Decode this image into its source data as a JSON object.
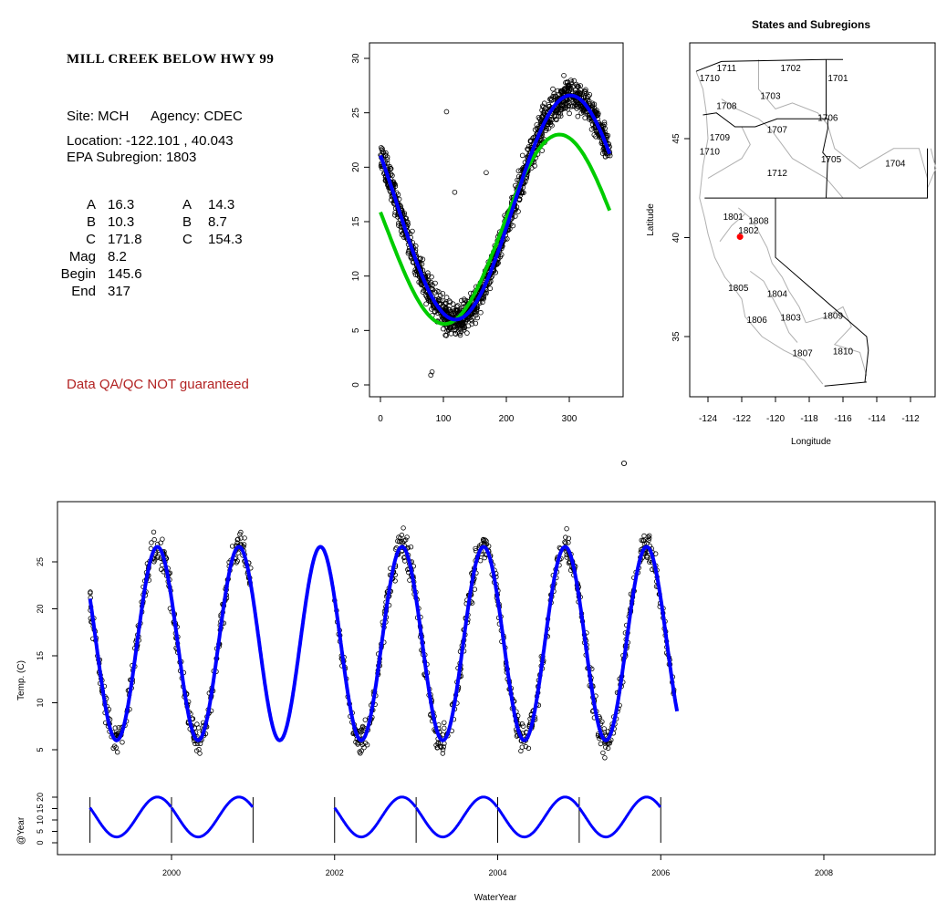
{
  "info": {
    "site_title": "MILL CREEK BELOW HWY 99",
    "site_label": "Site: MCH",
    "agency_label": "Agency: CDEC",
    "location": "Location: -122.101 , 40.043",
    "subregion": "EPA Subregion: 1803",
    "params": [
      {
        "label": "A",
        "v1": "16.3",
        "label2": "A",
        "v2": "14.3"
      },
      {
        "label": "B",
        "v1": "10.3",
        "label2": "B",
        "v2": "8.7"
      },
      {
        "label": "C",
        "v1": "171.8",
        "label2": "C",
        "v2": "154.3"
      },
      {
        "label": "Mag",
        "v1": "8.2",
        "label2": "",
        "v2": ""
      },
      {
        "label": "Begin",
        "v1": "145.6",
        "label2": "",
        "v2": ""
      },
      {
        "label": "End",
        "v1": "317",
        "label2": "",
        "v2": ""
      }
    ],
    "qa_note": "Data QA/QC NOT guaranteed"
  },
  "colors": {
    "fit_blue": "#0000ff",
    "fit_green": "#00cc00",
    "points": "#000000",
    "site_marker": "#ff0000",
    "qa_text": "#b22222"
  },
  "chart_data": [
    {
      "type": "scatter",
      "title": "",
      "xlabel": "",
      "ylabel": "",
      "xlim": [
        0,
        365
      ],
      "ylim": [
        0,
        30
      ],
      "xticks": [
        0,
        100,
        200,
        300
      ],
      "yticks": [
        0,
        5,
        10,
        15,
        20,
        25,
        30
      ],
      "series": [
        {
          "model": "harmonic fit 1",
          "A": 16.3,
          "B": 10.3,
          "C": 171.8,
          "color": "#0000ff"
        },
        {
          "model": "harmonic fit 2",
          "A": 14.3,
          "B": 8.7,
          "C": 154.3,
          "color": "#00cc00"
        }
      ],
      "outliers": [
        [
          105,
          25.1
        ],
        [
          118,
          17.7
        ],
        [
          168,
          19.5
        ],
        [
          80,
          0.9
        ],
        [
          82,
          1.2
        ]
      ]
    },
    {
      "type": "map",
      "title": "States and Subregions",
      "xlabel": "Longitude",
      "ylabel": "Latitude",
      "xlim": [
        -125.5,
        -110.5
      ],
      "ylim": [
        32.5,
        49.5
      ],
      "xticks": [
        -124,
        -122,
        -120,
        -118,
        -116,
        -114,
        -112
      ],
      "yticks": [
        35,
        40,
        45
      ],
      "region_labels": [
        {
          "text": "1711",
          "lon": -122.9,
          "lat": 48.4
        },
        {
          "text": "1710",
          "lon": -123.9,
          "lat": 47.9
        },
        {
          "text": "1702",
          "lon": -119.1,
          "lat": 48.4
        },
        {
          "text": "1701",
          "lon": -116.3,
          "lat": 47.9
        },
        {
          "text": "1703",
          "lon": -120.3,
          "lat": 47.0
        },
        {
          "text": "1708",
          "lon": -122.9,
          "lat": 46.5
        },
        {
          "text": "1706",
          "lon": -116.9,
          "lat": 45.9
        },
        {
          "text": "1707",
          "lon": -119.9,
          "lat": 45.3
        },
        {
          "text": "1709",
          "lon": -123.3,
          "lat": 44.9
        },
        {
          "text": "1710",
          "lon": -123.9,
          "lat": 44.2
        },
        {
          "text": "1705",
          "lon": -116.7,
          "lat": 43.8
        },
        {
          "text": "1704",
          "lon": -112.9,
          "lat": 43.6
        },
        {
          "text": "1712",
          "lon": -119.9,
          "lat": 43.1
        },
        {
          "text": "1801",
          "lon": -122.5,
          "lat": 40.9
        },
        {
          "text": "1808",
          "lon": -121.0,
          "lat": 40.7
        },
        {
          "text": "1802",
          "lon": -121.6,
          "lat": 40.2
        },
        {
          "text": "1805",
          "lon": -122.2,
          "lat": 37.3
        },
        {
          "text": "1804",
          "lon": -119.9,
          "lat": 37.0
        },
        {
          "text": "1806",
          "lon": -121.1,
          "lat": 35.7
        },
        {
          "text": "1803",
          "lon": -119.1,
          "lat": 35.8
        },
        {
          "text": "1809",
          "lon": -116.6,
          "lat": 35.9
        },
        {
          "text": "1807",
          "lon": -118.4,
          "lat": 34.0
        },
        {
          "text": "1810",
          "lon": -116.0,
          "lat": 34.1
        }
      ],
      "site": {
        "lon": -122.101,
        "lat": 40.043
      }
    },
    {
      "type": "line",
      "title": "",
      "xlabel": "WaterYear",
      "ylabel": "Temp. (C)",
      "ylabel2": "@Year",
      "xlim": [
        1998.6,
        2009.3
      ],
      "ylim": [
        3,
        29
      ],
      "xticks": [
        2000,
        2002,
        2004,
        2006,
        2008
      ],
      "yticks": [
        5,
        10,
        15,
        20,
        25
      ],
      "yticks2": [
        0,
        5,
        10,
        15,
        20
      ],
      "year_marks": [
        1999,
        2000,
        2001,
        2002,
        2003,
        2004,
        2005,
        2006
      ],
      "observed_years": [
        1999,
        2000,
        2002,
        2003,
        2004,
        2005
      ],
      "gap_year": 2001,
      "series": [
        {
          "model": "harmonic fit",
          "A": 16.3,
          "B": 10.3,
          "C": 171.8,
          "color": "#0000ff"
        }
      ]
    }
  ]
}
